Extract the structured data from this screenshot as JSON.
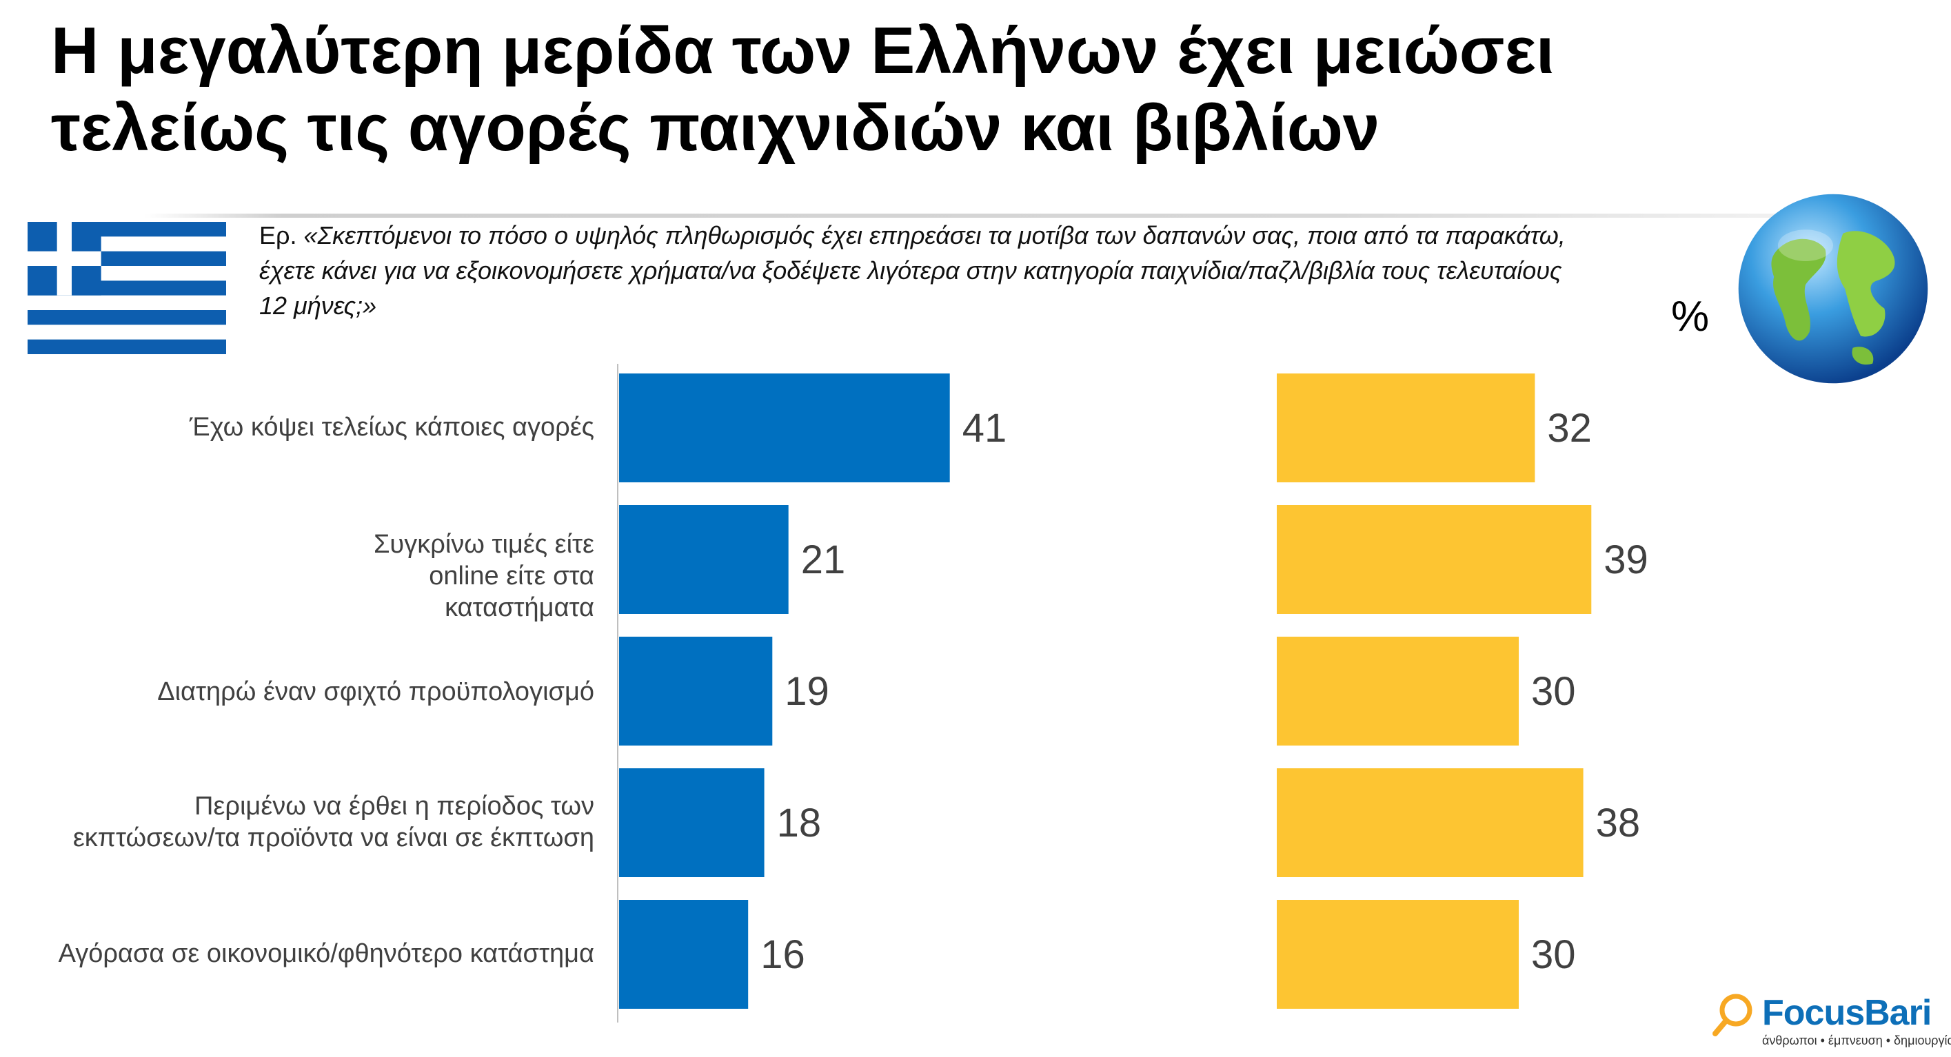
{
  "title": "Η μεγαλύτερη μερίδα των Ελλήνων έχει μειώσει τελείως τις αγορές παιχνιδιών και βιβλίων",
  "question_prefix": "Ερ. ",
  "question": "«Σκεπτόμενοι το πόσο ο υψηλός πληθωρισμός έχει επηρεάσει τα μοτίβα των δαπανών σας, ποια από τα παρακάτω, έχετε κάνει για να εξοικονομήσετε χρήματα/να ξοδέψετε λιγότερα στην κατηγορία παιχνίδια/παζλ/βιβλία τους τελευταίους 12 μήνες;»",
  "unit": "%",
  "logo": {
    "name": "FocusBari",
    "tagline": "άνθρωποι • έμπνευση • δημιουργία"
  },
  "icons": {
    "left": "greek-flag-icon",
    "right": "globe-icon"
  },
  "colors": {
    "greece": "#0070c0",
    "global": "#fdc532",
    "value_text": "#404040",
    "label_text": "#404040"
  },
  "chart_data": {
    "type": "bar",
    "orientation": "horizontal",
    "title": "",
    "xlabel": "",
    "ylabel": "",
    "xlim": [
      0,
      50
    ],
    "grid": false,
    "legend": "none",
    "categories": [
      "Έχω κόψει τελείως κάποιες αγορές",
      "Συγκρίνω τιμές είτε online είτε στα καταστήματα",
      "Διατηρώ έναν σφιχτό προϋπολογισμό",
      "Περιμένω να έρθει η περίοδος των εκπτώσεων/τα προϊόντα να είναι σε έκπτωση",
      "Αγόρασα σε οικονομικό/φθηνότερο κατάστημα"
    ],
    "series": [
      {
        "values": [
          41,
          21,
          19,
          18,
          16
        ],
        "color": "#0070c0"
      },
      {
        "values": [
          32,
          39,
          30,
          38,
          30
        ],
        "color": "#fdc532"
      }
    ]
  }
}
